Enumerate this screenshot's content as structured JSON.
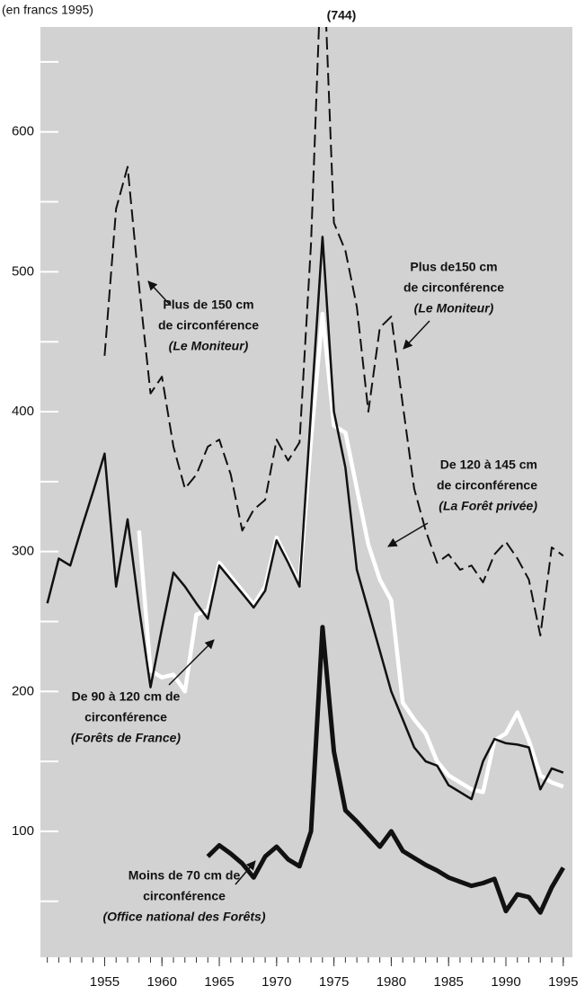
{
  "chart_data": {
    "type": "line",
    "y_axis_label": "(en francs 1995)",
    "x": [
      1950,
      1951,
      1952,
      1953,
      1954,
      1955,
      1956,
      1957,
      1958,
      1959,
      1960,
      1961,
      1962,
      1963,
      1964,
      1965,
      1966,
      1967,
      1968,
      1969,
      1970,
      1971,
      1972,
      1973,
      1974,
      1975,
      1976,
      1977,
      1978,
      1979,
      1980,
      1981,
      1982,
      1983,
      1984,
      1985,
      1986,
      1987,
      1988,
      1989,
      1990,
      1991,
      1992,
      1993,
      1994,
      1995
    ],
    "xlim": [
      1949.4,
      1995.8
    ],
    "xticks": [
      1955,
      1960,
      1965,
      1970,
      1975,
      1980,
      1985,
      1990,
      1995
    ],
    "ylim": [
      10,
      675
    ],
    "yticks": [
      100,
      200,
      300,
      400,
      500,
      600
    ],
    "yticks_minor": [
      50,
      150,
      250,
      350,
      450,
      550,
      650
    ],
    "background": "#d2d2d2",
    "series": [
      {
        "name": "Plus de 150 cm de circonférence (Le Moniteur)",
        "color": "#111111",
        "dashed": true,
        "line_width": 2,
        "values": [
          null,
          null,
          null,
          null,
          null,
          440,
          545,
          575,
          490,
          413,
          425,
          375,
          345,
          355,
          375,
          380,
          355,
          315,
          330,
          337,
          380,
          365,
          378,
          520,
          744,
          535,
          515,
          475,
          400,
          460,
          468,
          405,
          345,
          315,
          292,
          298,
          287,
          290,
          278,
          298,
          307,
          295,
          280,
          240,
          303,
          297
        ]
      },
      {
        "name": "De 120 à 145 cm de circonférence (La Forêt privée)",
        "color": "#ffffff",
        "dashed": false,
        "line_width": 4.5,
        "values": [
          null,
          null,
          null,
          null,
          null,
          null,
          null,
          null,
          315,
          215,
          210,
          212,
          200,
          255,
          258,
          292,
          282,
          272,
          262,
          275,
          310,
          293,
          277,
          380,
          470,
          390,
          385,
          345,
          305,
          280,
          265,
          192,
          180,
          170,
          150,
          140,
          135,
          130,
          128,
          165,
          170,
          185,
          165,
          140,
          135,
          132
        ]
      },
      {
        "name": "De 90 à 120 cm de circonférence (Forêts de France)",
        "color": "#111111",
        "dashed": false,
        "line_width": 2.5,
        "values": [
          263,
          295,
          290,
          317,
          343,
          370,
          275,
          323,
          260,
          203,
          245,
          285,
          275,
          263,
          252,
          290,
          280,
          270,
          260,
          272,
          308,
          292,
          275,
          400,
          525,
          400,
          360,
          287,
          258,
          229,
          200,
          180,
          160,
          150,
          147,
          133,
          128,
          123,
          150,
          166,
          163,
          162,
          160,
          130,
          145,
          142
        ]
      },
      {
        "name": "Moins de 70 cm de circonférence (Office national des Forêts)",
        "color": "#111111",
        "dashed": false,
        "line_width": 5,
        "values": [
          null,
          null,
          null,
          null,
          null,
          null,
          null,
          null,
          null,
          null,
          null,
          null,
          null,
          null,
          82,
          90,
          84,
          77,
          67,
          82,
          89,
          80,
          75,
          100,
          246,
          157,
          115,
          107,
          98,
          89,
          100,
          86,
          81,
          76,
          72,
          67,
          64,
          61,
          63,
          66,
          43,
          55,
          53,
          42,
          60,
          74
        ]
      }
    ],
    "peak_label": "(744)",
    "annotations": [
      {
        "lines": [
          "Plus de 150 cm",
          "de circonférence",
          "(Le Moniteur)"
        ]
      },
      {
        "lines": [
          "Plus de150 cm",
          "de circonférence",
          "(Le Moniteur)"
        ]
      },
      {
        "lines": [
          "De 120 à 145 cm",
          "de circonférence",
          "(La Forêt privée)"
        ]
      },
      {
        "lines": [
          "De 90 à 120 cm de",
          "circonférence",
          "(Forêts de France)"
        ]
      },
      {
        "lines": [
          "Moins de 70 cm de",
          "circonférence",
          "(Office national des Forêts)"
        ]
      }
    ]
  }
}
